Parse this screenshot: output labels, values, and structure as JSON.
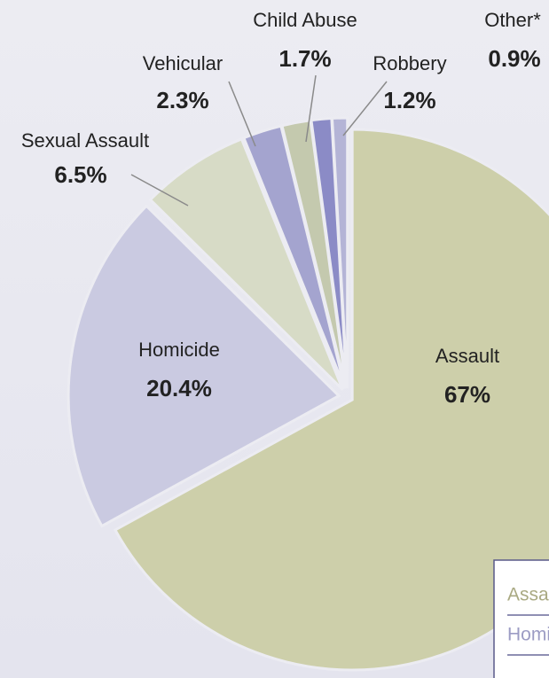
{
  "chart_data": {
    "type": "pie",
    "categories": [
      "Assault",
      "Homicide",
      "Sexual Assault",
      "Vehicular",
      "Child Abuse",
      "Robbery",
      "Other*"
    ],
    "values": [
      67,
      20.4,
      6.5,
      2.3,
      1.7,
      1.2,
      0.9
    ],
    "value_labels": [
      "67%",
      "20.4%",
      "6.5%",
      "2.3%",
      "1.7%",
      "1.2%",
      "0.9%"
    ],
    "colors": [
      "#cdcfaa",
      "#cacae1",
      "#d7dbc6",
      "#a4a4cf",
      "#c4c9ae",
      "#8b8bc6",
      "#b4b4d6"
    ],
    "legend": "lower right"
  }
}
